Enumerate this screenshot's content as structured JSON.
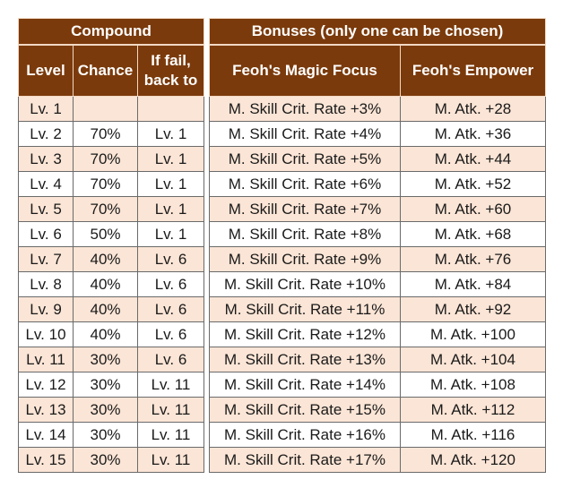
{
  "compound": {
    "group_header": "Compound",
    "headers": [
      "Level",
      "Chance",
      "If fail, back to"
    ],
    "rows": [
      {
        "level": "Lv. 1",
        "chance": "",
        "fail": ""
      },
      {
        "level": "Lv. 2",
        "chance": "70%",
        "fail": "Lv. 1"
      },
      {
        "level": "Lv. 3",
        "chance": "70%",
        "fail": "Lv. 1"
      },
      {
        "level": "Lv. 4",
        "chance": "70%",
        "fail": "Lv. 1"
      },
      {
        "level": "Lv. 5",
        "chance": "70%",
        "fail": "Lv. 1"
      },
      {
        "level": "Lv. 6",
        "chance": "50%",
        "fail": "Lv. 1"
      },
      {
        "level": "Lv. 7",
        "chance": "40%",
        "fail": "Lv. 6"
      },
      {
        "level": "Lv. 8",
        "chance": "40%",
        "fail": "Lv. 6"
      },
      {
        "level": "Lv. 9",
        "chance": "40%",
        "fail": "Lv. 6"
      },
      {
        "level": "Lv. 10",
        "chance": "40%",
        "fail": "Lv. 6"
      },
      {
        "level": "Lv. 11",
        "chance": "30%",
        "fail": "Lv. 6"
      },
      {
        "level": "Lv. 12",
        "chance": "30%",
        "fail": "Lv. 11"
      },
      {
        "level": "Lv. 13",
        "chance": "30%",
        "fail": "Lv. 11"
      },
      {
        "level": "Lv. 14",
        "chance": "30%",
        "fail": "Lv. 11"
      },
      {
        "level": "Lv. 15",
        "chance": "30%",
        "fail": "Lv. 11"
      }
    ]
  },
  "bonuses": {
    "group_header": "Bonuses (only one can be chosen)",
    "headers": [
      "Feoh's Magic Focus",
      "Feoh's Empower"
    ],
    "rows": [
      {
        "focus": "M. Skill Crit. Rate +3%",
        "empower": "M. Atk. +28"
      },
      {
        "focus": "M. Skill Crit. Rate +4%",
        "empower": "M. Atk. +36"
      },
      {
        "focus": "M. Skill Crit. Rate +5%",
        "empower": "M. Atk. +44"
      },
      {
        "focus": "M. Skill Crit. Rate +6%",
        "empower": "M. Atk. +52"
      },
      {
        "focus": "M. Skill Crit. Rate +7%",
        "empower": "M. Atk. +60"
      },
      {
        "focus": "M. Skill Crit. Rate +8%",
        "empower": "M. Atk. +68"
      },
      {
        "focus": "M. Skill Crit. Rate +9%",
        "empower": "M. Atk. +76"
      },
      {
        "focus": "M. Skill Crit. Rate +10%",
        "empower": "M. Atk. +84"
      },
      {
        "focus": "M. Skill Crit. Rate +11%",
        "empower": "M. Atk. +92"
      },
      {
        "focus": "M. Skill Crit. Rate +12%",
        "empower": "M. Atk. +100"
      },
      {
        "focus": "M. Skill Crit. Rate +13%",
        "empower": "M. Atk. +104"
      },
      {
        "focus": "M. Skill Crit. Rate +14%",
        "empower": "M. Atk. +108"
      },
      {
        "focus": "M. Skill Crit. Rate +15%",
        "empower": "M. Atk. +112"
      },
      {
        "focus": "M. Skill Crit. Rate +16%",
        "empower": "M. Atk. +116"
      },
      {
        "focus": "M. Skill Crit. Rate +17%",
        "empower": "M. Atk. +120"
      }
    ]
  },
  "colors": {
    "header_bg": "#7b3a0b",
    "header_text": "#ffffff",
    "row_odd_bg": "#fbe5d6",
    "row_even_bg": "#ffffff"
  }
}
